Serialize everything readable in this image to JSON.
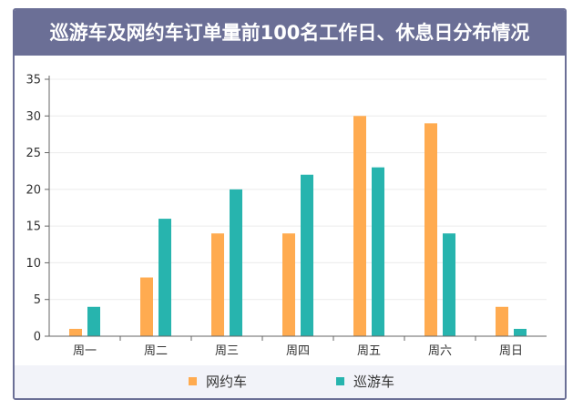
{
  "title": "巡游车及网约车订单量前100名工作日、休息日分布情况",
  "colors": {
    "header_bg": "#6b6f96",
    "legend_bg": "#f2f3f9",
    "series": [
      "#ffab50",
      "#27b4ae"
    ]
  },
  "chart_data": {
    "type": "bar",
    "categories": [
      "周一",
      "周二",
      "周三",
      "周四",
      "周五",
      "周六",
      "周日"
    ],
    "series": [
      {
        "name": "网约车",
        "values": [
          1,
          8,
          14,
          14,
          30,
          29,
          4
        ]
      },
      {
        "name": "巡游车",
        "values": [
          4,
          16,
          20,
          22,
          23,
          14,
          1
        ]
      }
    ],
    "ylim": [
      0,
      35
    ],
    "yticks": [
      0,
      5,
      10,
      15,
      20,
      25,
      30,
      35
    ],
    "grid": true,
    "legend_position": "bottom"
  }
}
